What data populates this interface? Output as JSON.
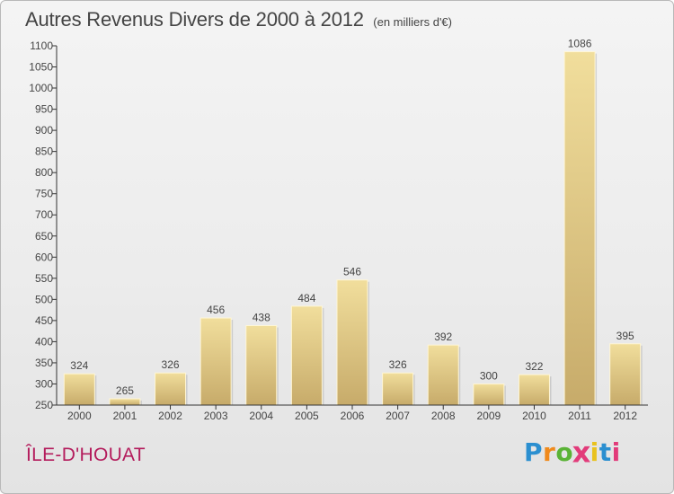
{
  "title": "Autres Revenus Divers de 2000 à 2012",
  "subtitle": "(en milliers d'€)",
  "commune": "ÎLE-D'HOUAT",
  "logo": {
    "letters": [
      "P",
      "r",
      "o",
      "x",
      "i",
      "t",
      "i"
    ],
    "colors": [
      "#2b8fd0",
      "#f08a1c",
      "#5ab336",
      "#e23b7a",
      "#e9c21e",
      "#2b8fd0",
      "#e23b7a"
    ]
  },
  "colors": {
    "bar_light": "#f1de9c",
    "bar_dark": "#c7ab6a",
    "text": "#444444",
    "commune": "#b41c5c"
  },
  "chart_data": {
    "type": "bar",
    "categories": [
      "2000",
      "2001",
      "2002",
      "2003",
      "2004",
      "2005",
      "2006",
      "2007",
      "2008",
      "2009",
      "2010",
      "2011",
      "2012"
    ],
    "values": [
      324,
      265,
      326,
      456,
      438,
      484,
      546,
      326,
      392,
      300,
      322,
      1086,
      395
    ],
    "ylim": [
      250,
      1100
    ],
    "yticks": [
      250,
      300,
      350,
      400,
      450,
      500,
      550,
      600,
      650,
      700,
      750,
      800,
      850,
      900,
      950,
      1000,
      1050,
      1100
    ],
    "grid": false,
    "legend": false
  }
}
